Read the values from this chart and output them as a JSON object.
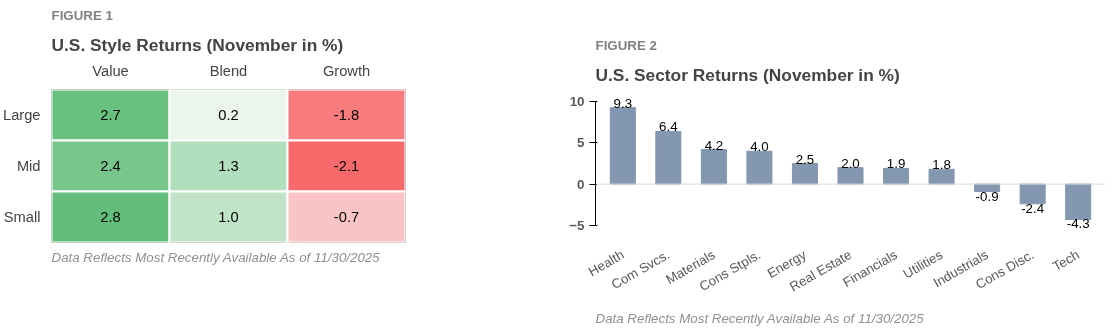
{
  "chart_data": [
    {
      "type": "heatmap",
      "title": "U.S. Style Returns (November in %)",
      "categories": [
        "Value",
        "Blend",
        "Growth"
      ],
      "y_categories": [
        "Large",
        "Mid",
        "Small"
      ],
      "cells": [
        [
          2.7,
          0.2,
          -1.8
        ],
        [
          2.4,
          1.3,
          -2.1
        ],
        [
          2.8,
          1.0,
          -0.7
        ]
      ],
      "cell_labels": [
        [
          "2.7",
          "0.2",
          "-1.8"
        ],
        [
          "2.4",
          "1.3",
          "-2.1"
        ],
        [
          "2.8",
          "1.0",
          "-0.7"
        ]
      ],
      "annotations": [
        "FIGURE 1",
        "Data Reflects Most Recently Available As of 11/30/2025"
      ]
    },
    {
      "type": "bar",
      "title": "U.S. Sector Returns (November in %)",
      "categories": [
        "Health",
        "Com Svcs.",
        "Materials",
        "Cons Stpls.",
        "Energy",
        "Real Estate",
        "Financials",
        "Utilities",
        "Industrials",
        "Cons Disc.",
        "Tech"
      ],
      "values": [
        9.3,
        6.4,
        4.2,
        4.0,
        2.5,
        2.0,
        1.9,
        1.8,
        -0.9,
        -2.4,
        -4.3
      ],
      "value_labels": [
        "9.3",
        "6.4",
        "4.2",
        "4.0",
        "2.5",
        "2.0",
        "1.9",
        "1.8",
        "-0.9",
        "-2.4",
        "-4.3"
      ],
      "color": "#8497b0",
      "ylim": [
        -5,
        10
      ],
      "yticks": [
        -5,
        0,
        5,
        10
      ],
      "ref_lines": [
        {
          "axis": "y",
          "value": 0,
          "color": "#d9d9d9"
        }
      ],
      "annotations": [
        "FIGURE 2",
        "Data Reflects Most Recently Available As of 11/30/2025"
      ]
    }
  ]
}
